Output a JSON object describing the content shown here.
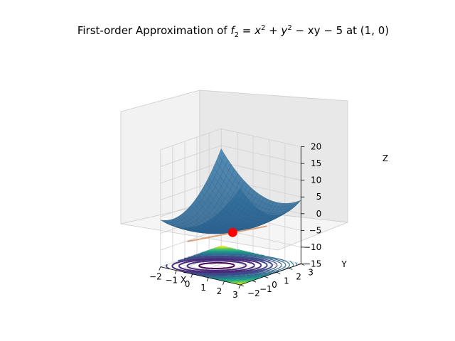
{
  "chart_data": {
    "type": "surface3d",
    "title_prefix": "First-order Approximation of ",
    "title_func_f": "f",
    "title_func_sub": "2",
    "title_func_rest": " = x",
    "title_sup1": "2",
    "title_plus": " + y",
    "title_sup2": "2",
    "title_tail": " − xy − 5 at (1, 0)",
    "function": "x^2 + y^2 - x*y - 5",
    "point": {
      "x": 1,
      "y": 0,
      "z": -4
    },
    "tangent_plane": "z = 2*x - y - 6",
    "xlabel": "X",
    "ylabel": "Y",
    "zlabel": "Z",
    "xlim": [
      -2,
      3
    ],
    "ylim": [
      -2,
      3
    ],
    "zlim": [
      -15,
      20
    ],
    "x_ticks": [
      "−2",
      "−1",
      "0",
      "1",
      "2",
      "3"
    ],
    "y_ticks": [
      "−2",
      "−1",
      "0",
      "1",
      "2",
      "3"
    ],
    "z_ticks": [
      "−15",
      "−10",
      "−5",
      "0",
      "5",
      "10",
      "15",
      "20"
    ],
    "contour_offset": -15,
    "grid": true,
    "colors": {
      "surface": "#3b78a8",
      "surface_edge": "#2c5f8a",
      "plane_line": "#d9a27a",
      "point": "#ff0000",
      "contour_colormap": "viridis"
    }
  }
}
